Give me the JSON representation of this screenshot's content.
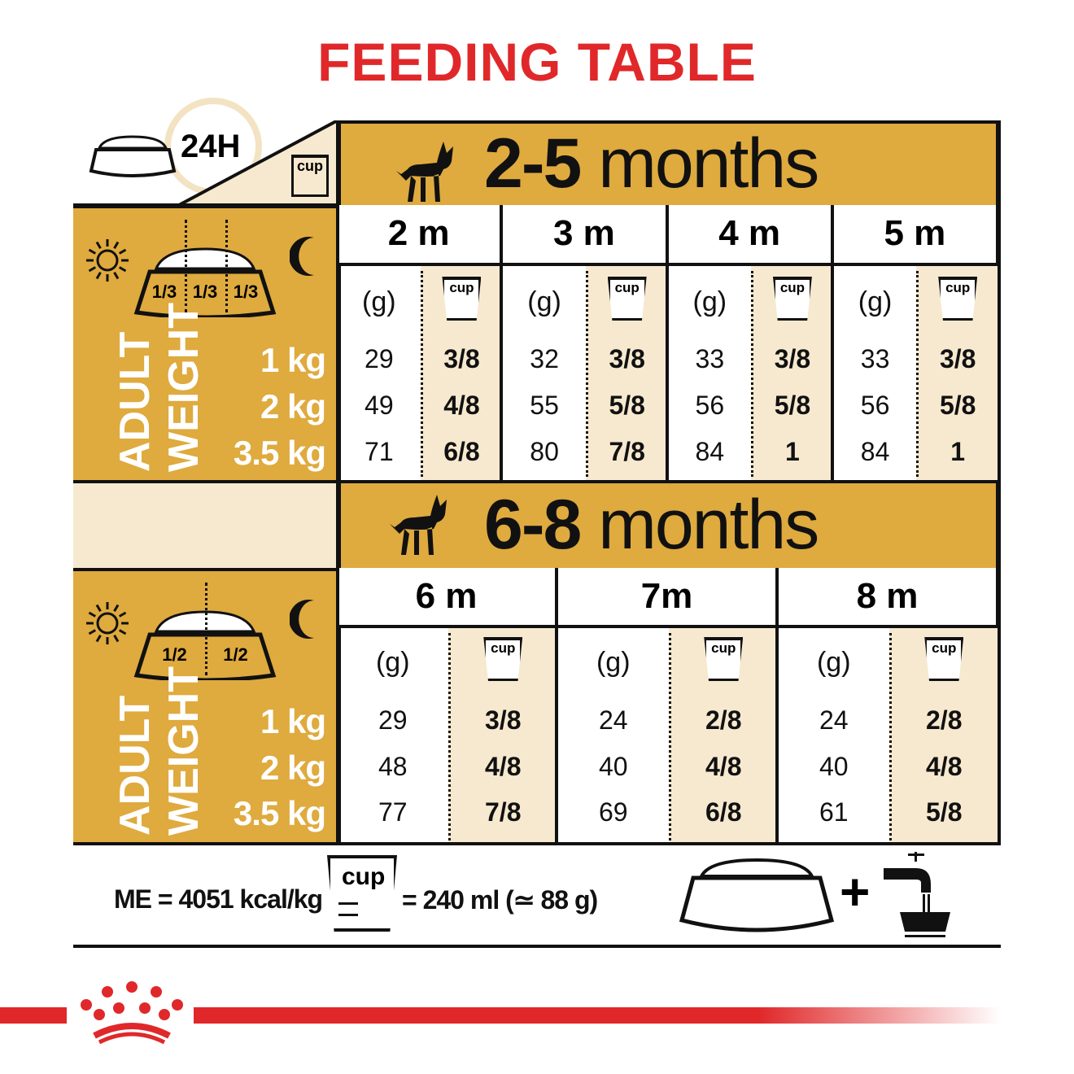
{
  "title": "FEEDING TABLE",
  "colors": {
    "gold": "#DFAA3E",
    "cream": "#F7E9CF",
    "red": "#E0282A",
    "ink": "#111111"
  },
  "corner": {
    "label": "24H",
    "cup_icon_label": "cup"
  },
  "sections": [
    {
      "heading_num": "2-5",
      "heading_unit": "months",
      "portion_fractions": [
        "1/3",
        "1/3",
        "1/3"
      ],
      "axis_label_line1": "ADULT",
      "axis_label_line2": "WEIGHT",
      "weights": [
        "1 kg",
        "2 kg",
        "3.5 kg"
      ],
      "grams_label": "(g)",
      "cup_label": "cup",
      "months": [
        {
          "label": "2 m",
          "grams": [
            "29",
            "49",
            "71"
          ],
          "cups": [
            "3/8",
            "4/8",
            "6/8"
          ]
        },
        {
          "label": "3 m",
          "grams": [
            "32",
            "55",
            "80"
          ],
          "cups": [
            "3/8",
            "5/8",
            "7/8"
          ]
        },
        {
          "label": "4 m",
          "grams": [
            "33",
            "56",
            "84"
          ],
          "cups": [
            "3/8",
            "5/8",
            "1"
          ]
        },
        {
          "label": "5 m",
          "grams": [
            "33",
            "56",
            "84"
          ],
          "cups": [
            "3/8",
            "5/8",
            "1"
          ]
        }
      ]
    },
    {
      "heading_num": "6-8",
      "heading_unit": "months",
      "portion_fractions": [
        "1/2",
        "1/2"
      ],
      "axis_label_line1": "ADULT",
      "axis_label_line2": "WEIGHT",
      "weights": [
        "1 kg",
        "2 kg",
        "3.5 kg"
      ],
      "grams_label": "(g)",
      "cup_label": "cup",
      "months": [
        {
          "label": "6 m",
          "grams": [
            "29",
            "48",
            "77"
          ],
          "cups": [
            "3/8",
            "4/8",
            "7/8"
          ]
        },
        {
          "label": "7m",
          "grams": [
            "24",
            "40",
            "69"
          ],
          "cups": [
            "2/8",
            "4/8",
            "6/8"
          ]
        },
        {
          "label": "8 m",
          "grams": [
            "24",
            "40",
            "61"
          ],
          "cups": [
            "2/8",
            "4/8",
            "5/8"
          ]
        }
      ]
    }
  ],
  "footer": {
    "energy": "ME = 4051 kcal/kg",
    "cup_label": "cup",
    "cup_equivalent": "= 240 ml (≃ 88 g)",
    "plus": "+"
  },
  "icons": [
    "bowl-icon",
    "clock-icon",
    "cup-icon",
    "dog-icon",
    "sun-icon",
    "moon-icon",
    "water-tap-icon",
    "crown-logo-icon"
  ]
}
